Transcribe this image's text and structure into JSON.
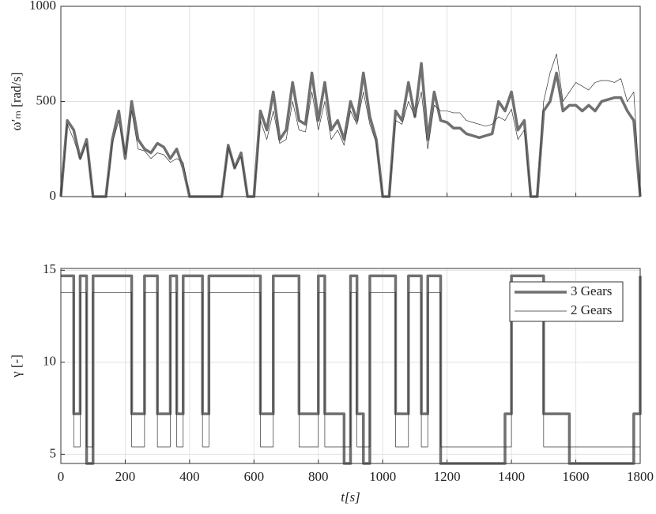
{
  "chart_data": [
    {
      "type": "line",
      "ylabel": "ω′ₘ [rad/s]",
      "x": [
        0,
        20,
        40,
        60,
        80,
        100,
        120,
        140,
        160,
        180,
        200,
        220,
        240,
        260,
        280,
        300,
        320,
        340,
        360,
        380,
        400,
        420,
        440,
        460,
        480,
        500,
        520,
        540,
        560,
        580,
        600,
        620,
        640,
        660,
        680,
        700,
        720,
        740,
        760,
        780,
        800,
        820,
        840,
        860,
        880,
        900,
        920,
        940,
        960,
        980,
        1000,
        1020,
        1040,
        1060,
        1080,
        1100,
        1120,
        1140,
        1160,
        1180,
        1200,
        1220,
        1240,
        1260,
        1280,
        1300,
        1320,
        1340,
        1360,
        1380,
        1400,
        1420,
        1440,
        1460,
        1480,
        1500,
        1520,
        1540,
        1560,
        1580,
        1600,
        1620,
        1640,
        1660,
        1680,
        1700,
        1720,
        1740,
        1760,
        1780,
        1800
      ],
      "series": [
        {
          "name": "3 Gears",
          "color": "#707070",
          "values": [
            0,
            400,
            350,
            200,
            300,
            0,
            0,
            0,
            300,
            450,
            200,
            500,
            300,
            250,
            230,
            280,
            260,
            200,
            250,
            150,
            0,
            0,
            0,
            0,
            0,
            0,
            270,
            150,
            230,
            0,
            0,
            450,
            350,
            550,
            300,
            350,
            600,
            400,
            380,
            650,
            400,
            600,
            350,
            400,
            300,
            500,
            400,
            650,
            420,
            300,
            0,
            0,
            450,
            400,
            600,
            420,
            700,
            300,
            550,
            400,
            390,
            360,
            360,
            330,
            320,
            310,
            320,
            330,
            500,
            450,
            550,
            350,
            400,
            0,
            0,
            450,
            500,
            650,
            450,
            480,
            480,
            450,
            480,
            450,
            500,
            510,
            520,
            520,
            450,
            400,
            0
          ]
        },
        {
          "name": "2 Gears",
          "color": "#333333",
          "values": [
            0,
            380,
            300,
            200,
            280,
            0,
            0,
            0,
            280,
            400,
            220,
            450,
            250,
            240,
            200,
            230,
            220,
            180,
            200,
            180,
            0,
            0,
            0,
            0,
            0,
            0,
            260,
            150,
            210,
            0,
            0,
            400,
            300,
            450,
            280,
            300,
            500,
            350,
            340,
            550,
            350,
            500,
            300,
            350,
            270,
            450,
            380,
            550,
            380,
            280,
            0,
            0,
            400,
            380,
            500,
            420,
            550,
            250,
            480,
            450,
            450,
            440,
            440,
            400,
            390,
            380,
            370,
            380,
            420,
            400,
            460,
            300,
            350,
            0,
            0,
            500,
            650,
            750,
            500,
            550,
            600,
            580,
            560,
            600,
            610,
            610,
            600,
            620,
            500,
            550,
            0
          ]
        }
      ],
      "xlim": [
        0,
        1800
      ],
      "ylim": [
        0,
        1000
      ],
      "yticks": [
        0,
        500,
        1000
      ],
      "grid": true
    },
    {
      "type": "step",
      "xlabel": "t[s]",
      "ylabel": "γ [-]",
      "x": [
        0,
        20,
        40,
        60,
        80,
        100,
        120,
        140,
        160,
        180,
        200,
        220,
        240,
        260,
        280,
        300,
        320,
        340,
        360,
        380,
        400,
        420,
        440,
        460,
        480,
        500,
        520,
        540,
        560,
        580,
        600,
        620,
        640,
        660,
        680,
        700,
        720,
        740,
        760,
        780,
        800,
        820,
        840,
        860,
        880,
        900,
        920,
        940,
        960,
        980,
        1000,
        1020,
        1040,
        1060,
        1080,
        1100,
        1120,
        1140,
        1160,
        1180,
        1200,
        1220,
        1240,
        1260,
        1280,
        1300,
        1320,
        1340,
        1360,
        1380,
        1400,
        1420,
        1440,
        1460,
        1480,
        1500,
        1520,
        1540,
        1560,
        1580,
        1600,
        1620,
        1640,
        1660,
        1680,
        1700,
        1720,
        1740,
        1760,
        1780,
        1800
      ],
      "series": [
        {
          "name": "3 Gears",
          "color": "#707070",
          "values": [
            14.7,
            14.7,
            7.2,
            14.7,
            4.5,
            14.7,
            14.7,
            14.7,
            14.7,
            14.7,
            14.7,
            7.2,
            7.2,
            14.7,
            14.7,
            7.2,
            7.2,
            14.7,
            7.2,
            14.7,
            14.7,
            14.7,
            7.2,
            14.7,
            14.7,
            14.7,
            14.7,
            14.7,
            14.7,
            14.7,
            14.7,
            7.2,
            7.2,
            14.7,
            14.7,
            14.7,
            14.7,
            7.2,
            7.2,
            7.2,
            14.7,
            7.2,
            7.2,
            7.2,
            4.5,
            14.7,
            7.2,
            4.5,
            14.7,
            14.7,
            14.7,
            14.7,
            7.2,
            7.2,
            14.7,
            14.7,
            7.2,
            14.7,
            14.7,
            4.5,
            4.5,
            4.5,
            4.5,
            4.5,
            4.5,
            4.5,
            4.5,
            4.5,
            4.5,
            7.2,
            14.7,
            14.7,
            14.7,
            14.7,
            14.7,
            7.2,
            7.2,
            7.2,
            7.2,
            4.5,
            4.5,
            4.5,
            4.5,
            4.5,
            4.5,
            4.5,
            4.5,
            4.5,
            4.5,
            7.2,
            14.7
          ]
        },
        {
          "name": "2 Gears",
          "color": "#333333",
          "values": [
            13.8,
            13.8,
            5.4,
            13.8,
            5.4,
            13.8,
            13.8,
            13.8,
            13.8,
            13.8,
            13.8,
            5.4,
            5.4,
            13.8,
            13.8,
            5.4,
            5.4,
            13.8,
            5.4,
            13.8,
            13.8,
            13.8,
            5.4,
            13.8,
            13.8,
            13.8,
            13.8,
            13.8,
            13.8,
            13.8,
            13.8,
            5.4,
            5.4,
            13.8,
            13.8,
            13.8,
            13.8,
            5.4,
            5.4,
            5.4,
            13.8,
            5.4,
            5.4,
            5.4,
            5.4,
            13.8,
            5.4,
            5.4,
            13.8,
            13.8,
            13.8,
            13.8,
            5.4,
            5.4,
            13.8,
            13.8,
            5.4,
            13.8,
            13.8,
            5.4,
            5.4,
            5.4,
            5.4,
            5.4,
            5.4,
            5.4,
            5.4,
            5.4,
            5.4,
            5.4,
            13.8,
            13.8,
            13.8,
            13.8,
            13.8,
            5.4,
            5.4,
            5.4,
            5.4,
            5.4,
            5.4,
            5.4,
            5.4,
            5.4,
            5.4,
            5.4,
            5.4,
            5.4,
            5.4,
            5.4,
            13.8
          ]
        }
      ],
      "xlim": [
        0,
        1800
      ],
      "xticks": [
        0,
        200,
        400,
        600,
        800,
        1000,
        1200,
        1400,
        1600,
        1800
      ],
      "ylim": [
        4.5,
        15.1
      ],
      "yticks": [
        5,
        10,
        15
      ],
      "grid": true,
      "legend": "upper-right"
    }
  ]
}
